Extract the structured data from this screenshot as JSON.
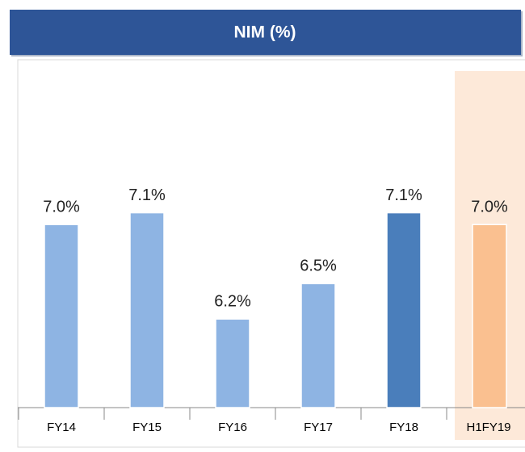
{
  "chart_data": {
    "type": "bar",
    "title": "NIM (%)",
    "categories": [
      "FY14",
      "FY15",
      "FY16",
      "FY17",
      "FY18",
      "H1FY19"
    ],
    "values": [
      7.0,
      7.1,
      6.2,
      6.5,
      7.1,
      7.0
    ],
    "value_labels": [
      "7.0%",
      "7.1%",
      "6.2%",
      "6.5%",
      "7.1%",
      "7.0%"
    ],
    "colors": [
      "#8eb4e3",
      "#8eb4e3",
      "#8eb4e3",
      "#8eb4e3",
      "#4a7ebb",
      "#fac090"
    ],
    "ylim": [
      5.45,
      8.3
    ]
  }
}
